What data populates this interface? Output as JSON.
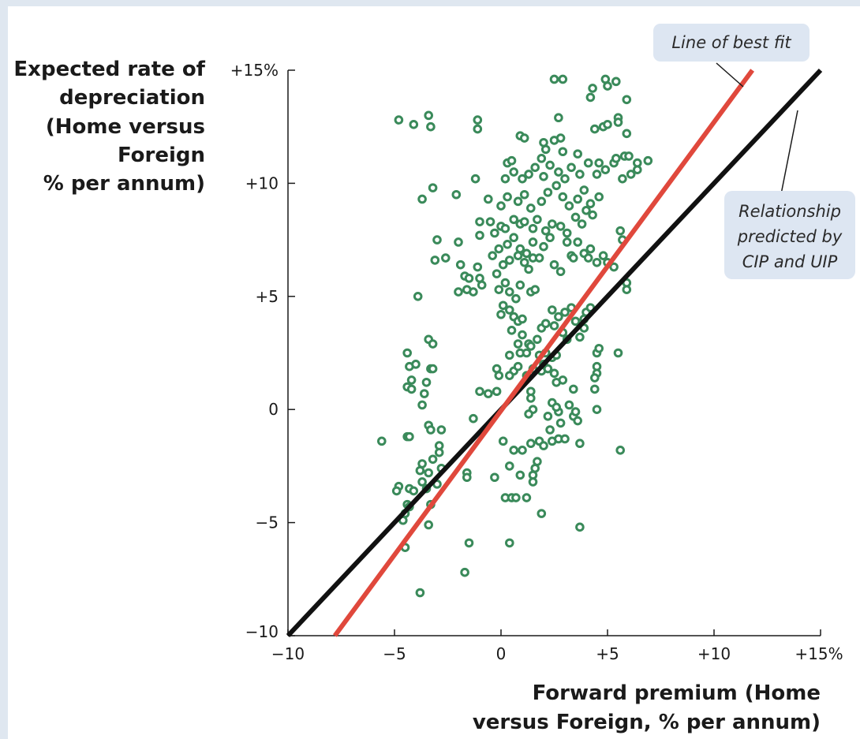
{
  "chart_data": {
    "type": "scatter",
    "title": "",
    "ylabel_lines": [
      "Expected rate of",
      "depreciation",
      "(Home versus",
      "Foreign",
      "% per annum)"
    ],
    "xlabel_lines": [
      "Forward premium (Home",
      "versus Foreign, % per annum)"
    ],
    "xlim": [
      -10,
      15
    ],
    "ylim": [
      -10,
      15
    ],
    "x_ticks": [
      {
        "value": -10,
        "label": "−10"
      },
      {
        "value": -5,
        "label": "−5"
      },
      {
        "value": 0,
        "label": "0"
      },
      {
        "value": 5,
        "label": "+5"
      },
      {
        "value": 10,
        "label": "+10"
      },
      {
        "value": 15,
        "label": "+15%"
      }
    ],
    "y_ticks": [
      {
        "value": -10,
        "label": "−10"
      },
      {
        "value": -5,
        "label": "−5"
      },
      {
        "value": 0,
        "label": "0"
      },
      {
        "value": 5,
        "label": "+5"
      },
      {
        "value": 10,
        "label": "+10"
      },
      {
        "value": 15,
        "label": "+15%"
      }
    ],
    "marker_color": "#3a8a5a",
    "lines": [
      {
        "name": "Line of best fit",
        "color": "#e0483c",
        "x": [
          -7.8,
          11.8
        ],
        "y": [
          -10,
          15
        ]
      },
      {
        "name": "Relationship predicted by CIP and UIP",
        "color": "#111111",
        "x": [
          -10,
          15
        ],
        "y": [
          -10,
          15
        ]
      }
    ],
    "annotations": [
      {
        "id": "best-fit",
        "lines": [
          "Line of best fit"
        ]
      },
      {
        "id": "cip-uip",
        "lines": [
          "Relationship",
          "predicted by",
          "CIP and UIP"
        ]
      }
    ],
    "points": [
      [
        -4.8,
        12.8
      ],
      [
        -4.1,
        12.6
      ],
      [
        -3.4,
        13.0
      ],
      [
        -3.3,
        12.5
      ],
      [
        -1.1,
        12.8
      ],
      [
        -1.1,
        12.4
      ],
      [
        -3.2,
        9.8
      ],
      [
        -3.7,
        9.3
      ],
      [
        -2.1,
        9.5
      ],
      [
        -1.2,
        10.2
      ],
      [
        -0.6,
        9.3
      ],
      [
        -3.0,
        7.5
      ],
      [
        -3.1,
        6.6
      ],
      [
        -2.6,
        6.7
      ],
      [
        -2.0,
        7.4
      ],
      [
        -1.9,
        6.4
      ],
      [
        -1.7,
        5.9
      ],
      [
        -1.5,
        5.8
      ],
      [
        -1.0,
        5.8
      ],
      [
        -1.1,
        6.3
      ],
      [
        -2.0,
        5.2
      ],
      [
        -1.6,
        5.3
      ],
      [
        -1.3,
        5.2
      ],
      [
        -3.9,
        5.0
      ],
      [
        -0.9,
        5.5
      ],
      [
        -1.0,
        7.7
      ],
      [
        -1.0,
        8.3
      ],
      [
        -0.5,
        8.3
      ],
      [
        -0.3,
        7.8
      ],
      [
        0.0,
        8.1
      ],
      [
        -4.4,
        2.5
      ],
      [
        -4.3,
        1.9
      ],
      [
        -4.0,
        2.0
      ],
      [
        -3.4,
        3.1
      ],
      [
        -3.2,
        2.9
      ],
      [
        -3.3,
        1.8
      ],
      [
        -3.2,
        1.8
      ],
      [
        -4.4,
        1.0
      ],
      [
        -4.2,
        0.9
      ],
      [
        -4.2,
        1.3
      ],
      [
        -3.5,
        1.2
      ],
      [
        -3.6,
        0.7
      ],
      [
        -3.7,
        0.2
      ],
      [
        -4.4,
        -1.2
      ],
      [
        -4.3,
        -1.2
      ],
      [
        -5.6,
        -1.4
      ],
      [
        -3.4,
        -0.7
      ],
      [
        -3.3,
        -0.9
      ],
      [
        -2.8,
        -0.9
      ],
      [
        -2.9,
        -1.6
      ],
      [
        -2.9,
        -1.9
      ],
      [
        -3.2,
        -2.2
      ],
      [
        -3.7,
        -2.4
      ],
      [
        -3.8,
        -2.7
      ],
      [
        -3.4,
        -2.8
      ],
      [
        -3.7,
        -3.2
      ],
      [
        -2.8,
        -2.6
      ],
      [
        -1.6,
        -2.8
      ],
      [
        -1.6,
        -3.0
      ],
      [
        -1.3,
        -0.4
      ],
      [
        -4.3,
        -3.5
      ],
      [
        -4.1,
        -3.6
      ],
      [
        -4.8,
        -3.4
      ],
      [
        -4.9,
        -3.6
      ],
      [
        -4.4,
        -4.2
      ],
      [
        -4.3,
        -4.3
      ],
      [
        -4.5,
        -4.6
      ],
      [
        -3.3,
        -4.2
      ],
      [
        -3.5,
        -3.5
      ],
      [
        -3.0,
        -3.3
      ],
      [
        -4.6,
        -4.9
      ],
      [
        -3.4,
        -5.1
      ],
      [
        -4.5,
        -6.1
      ],
      [
        -1.5,
        -5.9
      ],
      [
        -1.7,
        -7.2
      ],
      [
        -3.8,
        -8.1
      ],
      [
        -0.3,
        -3.0
      ],
      [
        0.4,
        -5.9
      ],
      [
        0.2,
        -3.9
      ],
      [
        0.5,
        -3.9
      ],
      [
        0.7,
        -3.9
      ],
      [
        1.2,
        -3.9
      ],
      [
        1.9,
        -4.6
      ],
      [
        1.5,
        -3.2
      ],
      [
        1.5,
        -2.9
      ],
      [
        0.9,
        -2.9
      ],
      [
        0.4,
        -2.5
      ],
      [
        1.6,
        -2.6
      ],
      [
        1.7,
        -2.3
      ],
      [
        0.6,
        -1.8
      ],
      [
        0.1,
        -1.4
      ],
      [
        1.0,
        -1.8
      ],
      [
        1.4,
        -1.5
      ],
      [
        1.8,
        -1.4
      ],
      [
        2.0,
        -1.6
      ],
      [
        2.4,
        -1.4
      ],
      [
        2.7,
        -1.3
      ],
      [
        3.0,
        -1.3
      ],
      [
        3.7,
        -1.5
      ],
      [
        3.7,
        -5.2
      ],
      [
        5.6,
        -1.8
      ],
      [
        3.4,
        -0.3
      ],
      [
        3.6,
        -0.5
      ],
      [
        2.3,
        -0.9
      ],
      [
        2.8,
        -0.6
      ],
      [
        2.7,
        -0.1
      ],
      [
        2.2,
        -0.3
      ],
      [
        1.5,
        0.0
      ],
      [
        1.3,
        -0.2
      ],
      [
        1.4,
        0.5
      ],
      [
        1.4,
        0.8
      ],
      [
        2.4,
        0.3
      ],
      [
        2.6,
        0.1
      ],
      [
        3.2,
        0.2
      ],
      [
        3.5,
        -0.1
      ],
      [
        4.5,
        0.0
      ],
      [
        4.4,
        0.9
      ],
      [
        3.4,
        0.9
      ],
      [
        2.6,
        1.2
      ],
      [
        2.9,
        1.3
      ],
      [
        0.6,
        1.7
      ],
      [
        0.8,
        1.9
      ],
      [
        1.2,
        1.5
      ],
      [
        1.5,
        1.8
      ],
      [
        1.9,
        1.7
      ],
      [
        2.0,
        2.0
      ],
      [
        2.2,
        1.8
      ],
      [
        2.5,
        1.6
      ],
      [
        -0.2,
        1.8
      ],
      [
        -0.1,
        1.5
      ],
      [
        0.4,
        2.4
      ],
      [
        0.4,
        1.5
      ],
      [
        -1.0,
        0.8
      ],
      [
        -0.6,
        0.7
      ],
      [
        -0.2,
        0.8
      ],
      [
        0.9,
        2.5
      ],
      [
        1.2,
        2.5
      ],
      [
        1.3,
        2.9
      ],
      [
        1.8,
        2.4
      ],
      [
        2.1,
        2.5
      ],
      [
        2.4,
        2.3
      ],
      [
        2.6,
        2.4
      ],
      [
        4.5,
        2.5
      ],
      [
        4.6,
        2.7
      ],
      [
        5.5,
        2.5
      ],
      [
        4.5,
        1.9
      ],
      [
        4.5,
        1.6
      ],
      [
        4.4,
        1.4
      ],
      [
        0.0,
        4.2
      ],
      [
        0.1,
        4.6
      ],
      [
        0.4,
        4.4
      ],
      [
        0.6,
        4.1
      ],
      [
        0.8,
        3.9
      ],
      [
        1.0,
        4.0
      ],
      [
        0.5,
        3.5
      ],
      [
        1.0,
        3.3
      ],
      [
        0.8,
        2.9
      ],
      [
        1.4,
        2.8
      ],
      [
        1.7,
        3.1
      ],
      [
        1.9,
        3.6
      ],
      [
        2.1,
        3.8
      ],
      [
        2.5,
        3.7
      ],
      [
        2.7,
        4.1
      ],
      [
        3.0,
        4.3
      ],
      [
        3.3,
        4.5
      ],
      [
        3.5,
        3.9
      ],
      [
        3.9,
        3.6
      ],
      [
        4.0,
        4.3
      ],
      [
        2.4,
        4.4
      ],
      [
        2.9,
        3.4
      ],
      [
        3.1,
        3.1
      ],
      [
        3.7,
        3.2
      ],
      [
        3.9,
        4.0
      ],
      [
        4.2,
        4.5
      ],
      [
        -0.1,
        5.3
      ],
      [
        0.2,
        5.6
      ],
      [
        0.4,
        5.2
      ],
      [
        0.7,
        4.9
      ],
      [
        0.9,
        5.5
      ],
      [
        1.4,
        5.2
      ],
      [
        1.6,
        5.3
      ],
      [
        -0.2,
        6.0
      ],
      [
        0.1,
        6.4
      ],
      [
        0.4,
        6.6
      ],
      [
        0.8,
        6.8
      ],
      [
        1.1,
        6.5
      ],
      [
        1.3,
        6.2
      ],
      [
        1.5,
        6.7
      ],
      [
        -0.4,
        6.8
      ],
      [
        -0.1,
        7.1
      ],
      [
        0.3,
        7.3
      ],
      [
        0.6,
        7.6
      ],
      [
        0.9,
        7.1
      ],
      [
        1.2,
        6.9
      ],
      [
        1.5,
        7.4
      ],
      [
        1.8,
        6.7
      ],
      [
        2.0,
        7.2
      ],
      [
        2.3,
        7.6
      ],
      [
        2.5,
        6.4
      ],
      [
        2.8,
        6.1
      ],
      [
        3.1,
        7.4
      ],
      [
        3.3,
        6.8
      ],
      [
        3.6,
        7.4
      ],
      [
        3.9,
        6.9
      ],
      [
        4.2,
        7.1
      ],
      [
        4.5,
        6.5
      ],
      [
        4.8,
        6.8
      ],
      [
        5.0,
        6.5
      ],
      [
        5.3,
        6.3
      ],
      [
        5.6,
        7.9
      ],
      [
        5.7,
        7.5
      ],
      [
        5.9,
        5.3
      ],
      [
        5.9,
        5.6
      ],
      [
        3.4,
        6.7
      ],
      [
        4.1,
        6.7
      ],
      [
        0.2,
        8.0
      ],
      [
        0.6,
        8.4
      ],
      [
        0.9,
        8.2
      ],
      [
        1.1,
        8.3
      ],
      [
        1.5,
        8.0
      ],
      [
        1.7,
        8.4
      ],
      [
        2.1,
        7.9
      ],
      [
        2.4,
        8.2
      ],
      [
        2.8,
        8.1
      ],
      [
        3.1,
        7.8
      ],
      [
        3.5,
        8.5
      ],
      [
        3.8,
        8.2
      ],
      [
        4.0,
        8.8
      ],
      [
        4.3,
        8.6
      ],
      [
        0.0,
        9.0
      ],
      [
        0.3,
        9.4
      ],
      [
        0.8,
        9.2
      ],
      [
        1.1,
        9.5
      ],
      [
        1.4,
        8.9
      ],
      [
        1.9,
        9.2
      ],
      [
        2.2,
        9.6
      ],
      [
        2.6,
        9.9
      ],
      [
        2.9,
        9.4
      ],
      [
        3.2,
        9.0
      ],
      [
        3.6,
        9.3
      ],
      [
        3.9,
        9.7
      ],
      [
        4.2,
        9.1
      ],
      [
        4.6,
        9.4
      ],
      [
        0.2,
        10.2
      ],
      [
        0.6,
        10.5
      ],
      [
        1.0,
        10.2
      ],
      [
        1.3,
        10.4
      ],
      [
        1.6,
        10.7
      ],
      [
        2.0,
        10.3
      ],
      [
        2.3,
        10.8
      ],
      [
        2.7,
        10.5
      ],
      [
        3.0,
        10.2
      ],
      [
        3.3,
        10.7
      ],
      [
        3.7,
        10.4
      ],
      [
        4.1,
        10.9
      ],
      [
        4.5,
        10.4
      ],
      [
        4.9,
        10.6
      ],
      [
        5.3,
        10.9
      ],
      [
        5.7,
        10.2
      ],
      [
        6.1,
        10.4
      ],
      [
        6.4,
        10.6
      ],
      [
        0.3,
        10.9
      ],
      [
        0.5,
        11.0
      ],
      [
        1.9,
        11.1
      ],
      [
        2.1,
        11.5
      ],
      [
        2.9,
        11.4
      ],
      [
        3.6,
        11.3
      ],
      [
        5.8,
        11.2
      ],
      [
        6.0,
        11.2
      ],
      [
        6.4,
        10.9
      ],
      [
        6.9,
        11.0
      ],
      [
        5.4,
        11.1
      ],
      [
        4.6,
        10.9
      ],
      [
        0.9,
        12.1
      ],
      [
        1.1,
        12.0
      ],
      [
        2.0,
        11.8
      ],
      [
        2.5,
        11.9
      ],
      [
        2.8,
        12.0
      ],
      [
        2.7,
        12.9
      ],
      [
        4.4,
        12.4
      ],
      [
        4.8,
        12.5
      ],
      [
        5.0,
        12.6
      ],
      [
        5.5,
        12.9
      ],
      [
        5.5,
        12.7
      ],
      [
        5.9,
        12.2
      ],
      [
        4.2,
        13.8
      ],
      [
        4.3,
        14.2
      ],
      [
        5.0,
        14.3
      ],
      [
        5.4,
        14.5
      ],
      [
        5.9,
        13.7
      ],
      [
        2.5,
        14.6
      ],
      [
        2.9,
        14.6
      ],
      [
        4.9,
        14.6
      ]
    ]
  }
}
